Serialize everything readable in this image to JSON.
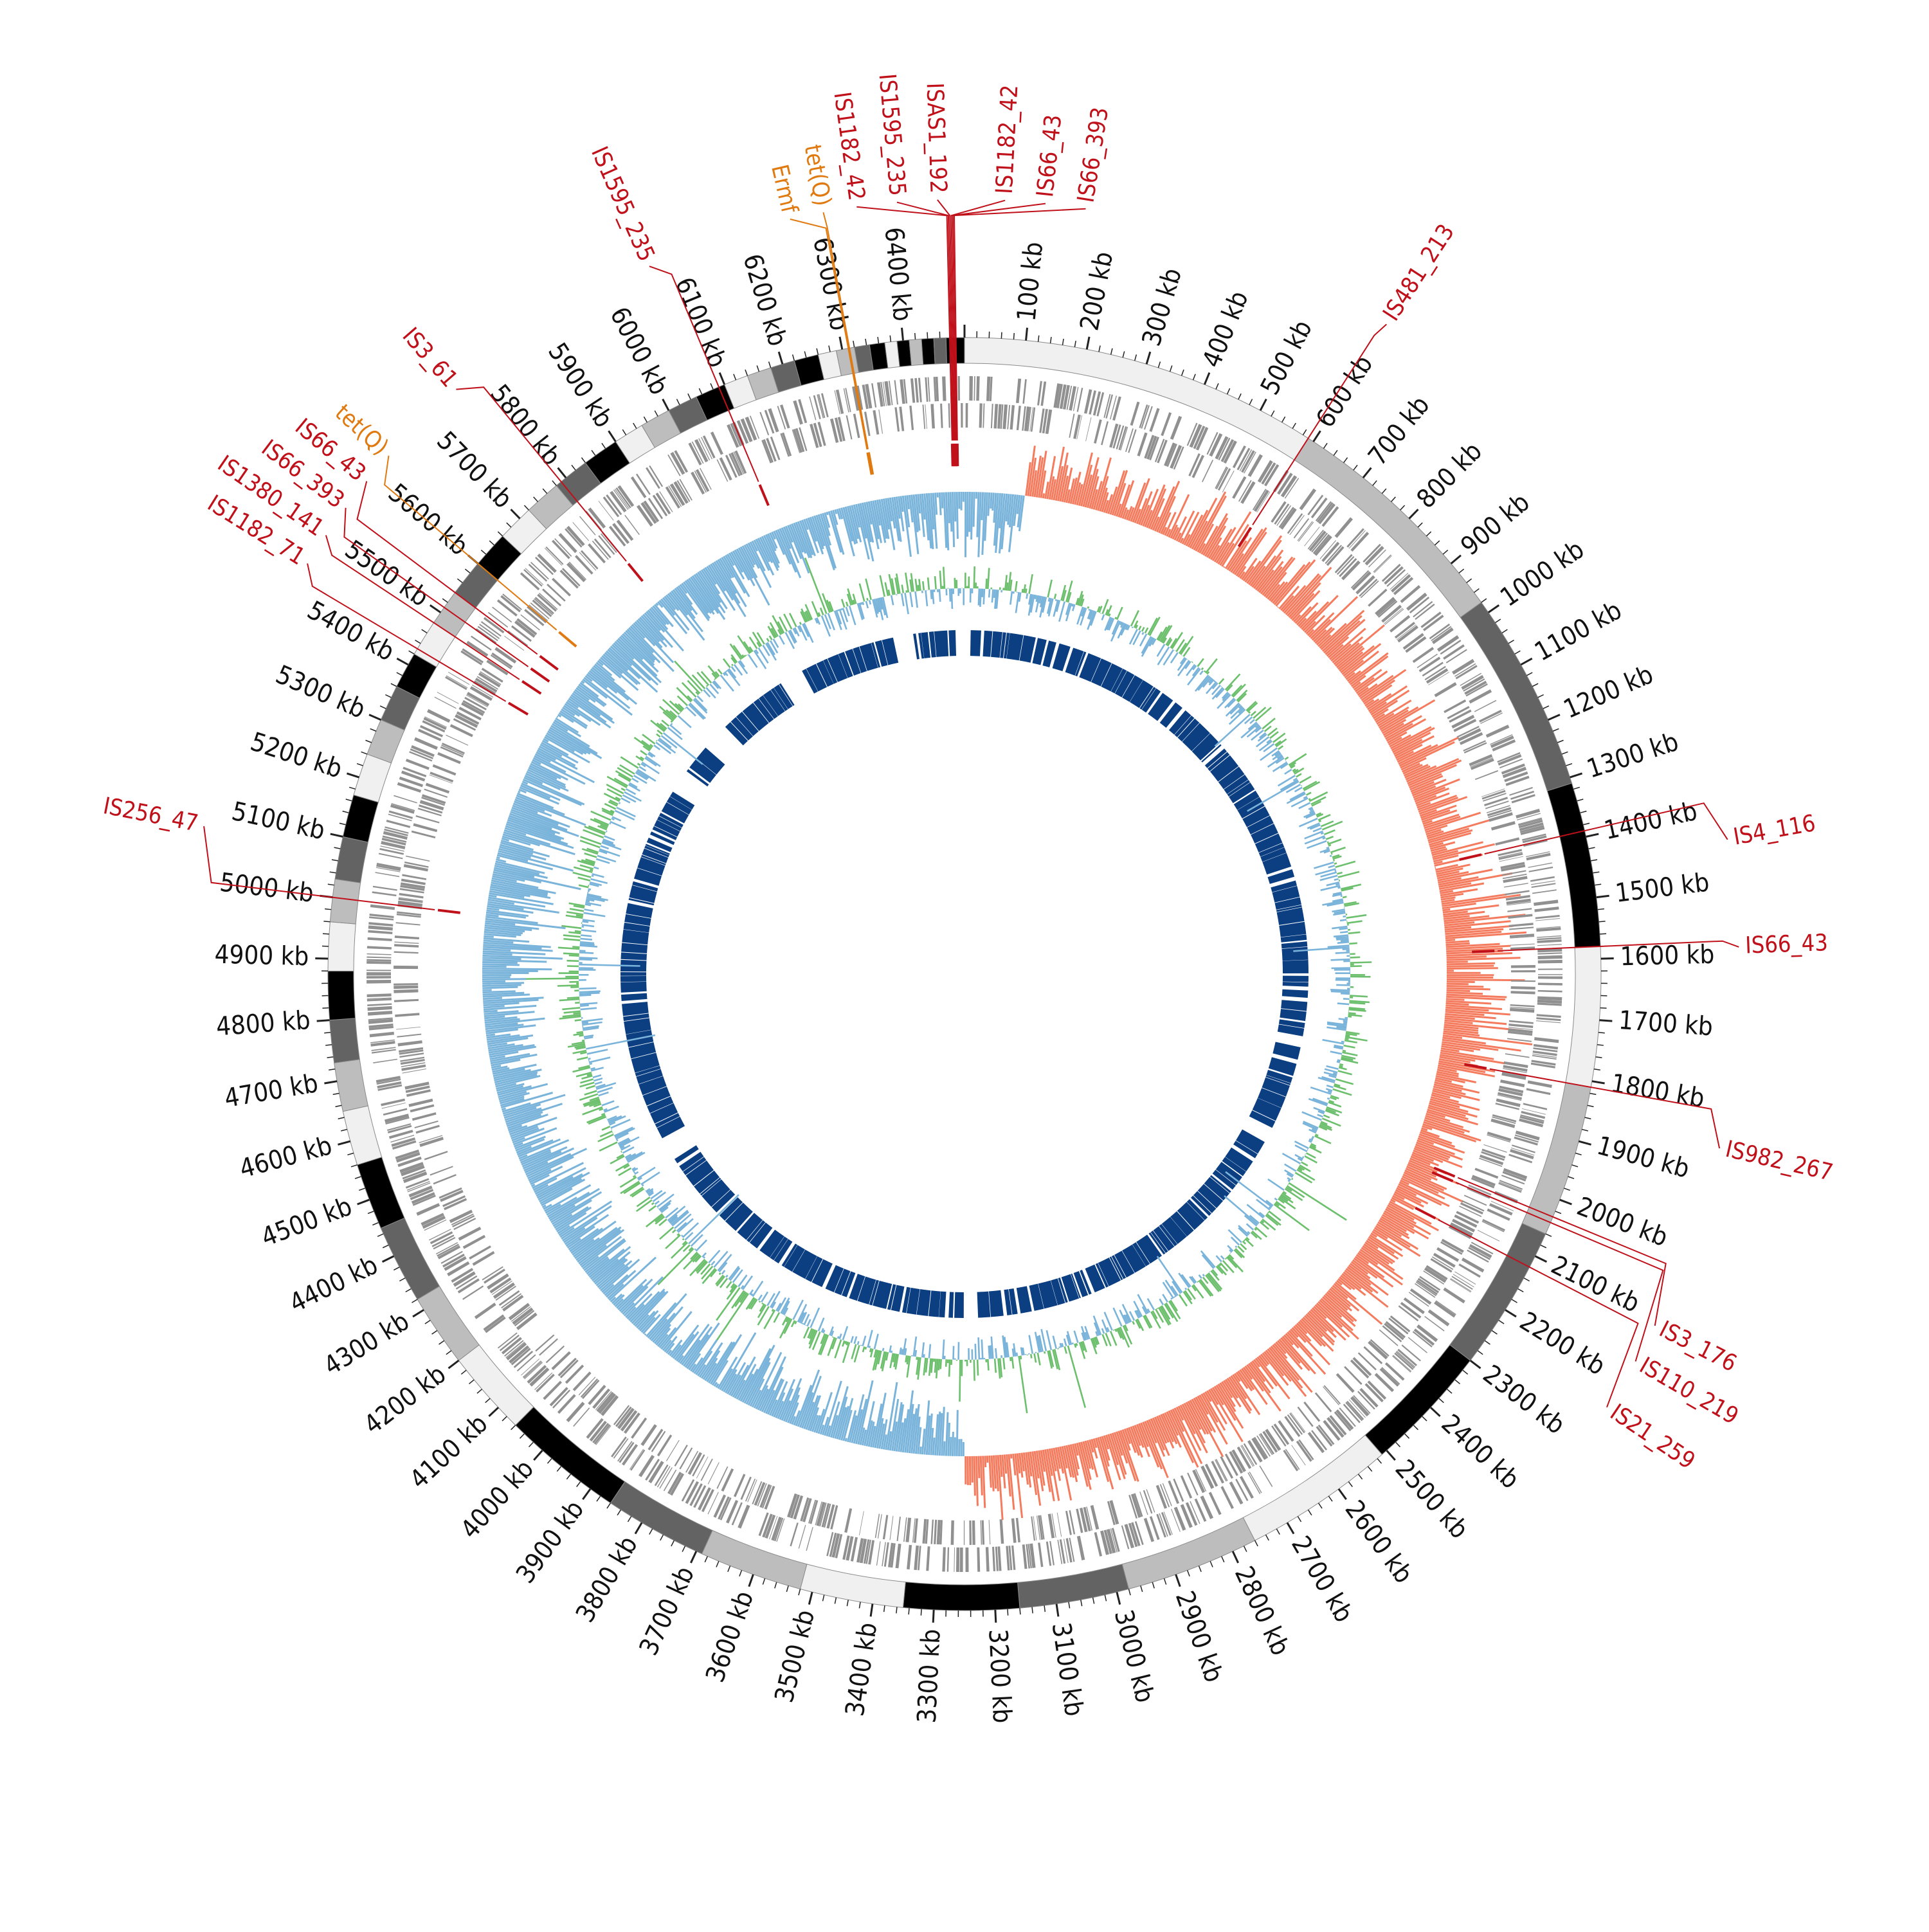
{
  "genome": {
    "length_kb": 6500,
    "tick_labels_kb": [
      100,
      200,
      300,
      400,
      500,
      600,
      700,
      800,
      900,
      1000,
      1100,
      1200,
      1300,
      1400,
      1500,
      1600,
      1700,
      1800,
      1900,
      2000,
      2100,
      2200,
      2300,
      2400,
      2500,
      2600,
      2700,
      2800,
      2900,
      3000,
      3100,
      3200,
      3300,
      3400,
      3500,
      3600,
      3700,
      3800,
      3900,
      4000,
      4100,
      4200,
      4300,
      4400,
      4500,
      4600,
      4700,
      4800,
      4900,
      5000,
      5100,
      5200,
      5300,
      5400,
      5500,
      5600,
      5700,
      5800,
      5900,
      6000,
      6100,
      6200,
      6300,
      6400
    ],
    "tick_label_suffix": " kb"
  },
  "colors": {
    "is_element": "#c0101a",
    "resistance_gene": "#e07a10",
    "gc_content": "#6cbf6c",
    "skew_negative": "#7ab4da",
    "skew_positive": "#f47b5e",
    "cds": "#909090",
    "inner_block": "#0b3f82",
    "contig_palette": [
      "#f0f0f0",
      "#bdbdbd",
      "#636363",
      "#000000"
    ]
  },
  "contigs_kb": [
    {
      "start": 0,
      "end": 590,
      "shade": 0
    },
    {
      "start": 590,
      "end": 980,
      "shade": 1
    },
    {
      "start": 980,
      "end": 1310,
      "shade": 2
    },
    {
      "start": 1310,
      "end": 1580,
      "shade": 3
    },
    {
      "start": 1580,
      "end": 1810,
      "shade": 0
    },
    {
      "start": 1810,
      "end": 2060,
      "shade": 1
    },
    {
      "start": 2060,
      "end": 2300,
      "shade": 2
    },
    {
      "start": 2300,
      "end": 2510,
      "shade": 3
    },
    {
      "start": 2510,
      "end": 2760,
      "shade": 0
    },
    {
      "start": 2760,
      "end": 2980,
      "shade": 1
    },
    {
      "start": 2980,
      "end": 3160,
      "shade": 2
    },
    {
      "start": 3160,
      "end": 3350,
      "shade": 3
    },
    {
      "start": 3350,
      "end": 3520,
      "shade": 0
    },
    {
      "start": 3520,
      "end": 3690,
      "shade": 1
    },
    {
      "start": 3690,
      "end": 3860,
      "shade": 2
    },
    {
      "start": 3860,
      "end": 4060,
      "shade": 3
    },
    {
      "start": 4060,
      "end": 4200,
      "shade": 0
    },
    {
      "start": 4200,
      "end": 4320,
      "shade": 1
    },
    {
      "start": 4320,
      "end": 4450,
      "shade": 2
    },
    {
      "start": 4450,
      "end": 4560,
      "shade": 3
    },
    {
      "start": 4560,
      "end": 4650,
      "shade": 0
    },
    {
      "start": 4650,
      "end": 4730,
      "shade": 1
    },
    {
      "start": 4730,
      "end": 4800,
      "shade": 2
    },
    {
      "start": 4800,
      "end": 4880,
      "shade": 3
    },
    {
      "start": 4880,
      "end": 4960,
      "shade": 0
    },
    {
      "start": 4960,
      "end": 5030,
      "shade": 1
    },
    {
      "start": 5030,
      "end": 5100,
      "shade": 2
    },
    {
      "start": 5100,
      "end": 5170,
      "shade": 3
    },
    {
      "start": 5170,
      "end": 5240,
      "shade": 0
    },
    {
      "start": 5240,
      "end": 5300,
      "shade": 1
    },
    {
      "start": 5300,
      "end": 5360,
      "shade": 2
    },
    {
      "start": 5360,
      "end": 5420,
      "shade": 3
    },
    {
      "start": 5420,
      "end": 5480,
      "shade": 0
    },
    {
      "start": 5480,
      "end": 5540,
      "shade": 1
    },
    {
      "start": 5540,
      "end": 5600,
      "shade": 2
    },
    {
      "start": 5600,
      "end": 5660,
      "shade": 3
    },
    {
      "start": 5660,
      "end": 5720,
      "shade": 0
    },
    {
      "start": 5720,
      "end": 5780,
      "shade": 1
    },
    {
      "start": 5780,
      "end": 5840,
      "shade": 2
    },
    {
      "start": 5840,
      "end": 5900,
      "shade": 3
    },
    {
      "start": 5900,
      "end": 5950,
      "shade": 0
    },
    {
      "start": 5950,
      "end": 6000,
      "shade": 1
    },
    {
      "start": 6000,
      "end": 6050,
      "shade": 2
    },
    {
      "start": 6050,
      "end": 6100,
      "shade": 3
    },
    {
      "start": 6100,
      "end": 6140,
      "shade": 0
    },
    {
      "start": 6140,
      "end": 6180,
      "shade": 1
    },
    {
      "start": 6180,
      "end": 6220,
      "shade": 2
    },
    {
      "start": 6220,
      "end": 6260,
      "shade": 3
    },
    {
      "start": 6260,
      "end": 6290,
      "shade": 0
    },
    {
      "start": 6290,
      "end": 6320,
      "shade": 1
    },
    {
      "start": 6320,
      "end": 6345,
      "shade": 2
    },
    {
      "start": 6345,
      "end": 6370,
      "shade": 3
    },
    {
      "start": 6370,
      "end": 6390,
      "shade": 0
    },
    {
      "start": 6390,
      "end": 6410,
      "shade": 3
    },
    {
      "start": 6410,
      "end": 6430,
      "shade": 1
    },
    {
      "start": 6430,
      "end": 6450,
      "shade": 3
    },
    {
      "start": 6450,
      "end": 6470,
      "shade": 2
    },
    {
      "start": 6470,
      "end": 6500,
      "shade": 3
    }
  ],
  "features": [
    {
      "name": "ISAS1_192",
      "kb": 6480,
      "kind": "is",
      "label_angle_deg": -2.0
    },
    {
      "name": "IS1595_235",
      "kb": 6478,
      "kind": "is",
      "label_angle_deg": -5.0
    },
    {
      "name": "IS1182_42",
      "kb": 6476,
      "kind": "is",
      "label_angle_deg": -8.0
    },
    {
      "name": "IS1182_42",
      "kb": 6482,
      "kind": "is",
      "label_angle_deg": 3.0
    },
    {
      "name": "IS66_43",
      "kb": 6484,
      "kind": "is",
      "label_angle_deg": 6.0
    },
    {
      "name": "IS66_393",
      "kb": 6486,
      "kind": "is",
      "label_angle_deg": 9.0
    },
    {
      "name": "Ermf",
      "kb": 6310,
      "kind": "res",
      "label_angle_deg": -13.0
    },
    {
      "name": "tet(Q)",
      "kb": 6312,
      "kind": "res",
      "label_angle_deg": -10.5
    },
    {
      "name": "IS1595_235",
      "kb": 6090,
      "kind": "is",
      "label_angle_deg": -24.0
    },
    {
      "name": "IS3_61",
      "kb": 5790,
      "kind": "is",
      "label_angle_deg": -41.0
    },
    {
      "name": "tet(Q)",
      "kb": 5600,
      "kind": "res",
      "label_angle_deg": -48.0
    },
    {
      "name": "IS66_43",
      "kb": 5540,
      "kind": "is",
      "label_angle_deg": -50.5
    },
    {
      "name": "IS66_393",
      "kb": 5510,
      "kind": "is",
      "label_angle_deg": -53.0
    },
    {
      "name": "IS1380_141",
      "kb": 5480,
      "kind": "is",
      "label_angle_deg": -55.5
    },
    {
      "name": "IS1182_71",
      "kb": 5430,
      "kind": "is",
      "label_angle_deg": -58.0
    },
    {
      "name": "IS256_47",
      "kb": 5000,
      "kind": "is",
      "label_angle_deg": -79.0
    },
    {
      "name": "IS481_213",
      "kb": 590,
      "kind": "is",
      "label_angle_deg": 33.0
    },
    {
      "name": "IS4_116",
      "kb": 1390,
      "kind": "is",
      "label_angle_deg": 80.0
    },
    {
      "name": "IS66_43",
      "kb": 1580,
      "kind": "is",
      "label_angle_deg": 88.0
    },
    {
      "name": "IS982_267",
      "kb": 1810,
      "kind": "is",
      "label_angle_deg": 103.0
    },
    {
      "name": "IS3_176",
      "kb": 2030,
      "kind": "is",
      "label_angle_deg": 117.0
    },
    {
      "name": "IS110_219",
      "kb": 2040,
      "kind": "is",
      "label_angle_deg": 120.0
    },
    {
      "name": "IS21_259",
      "kb": 2120,
      "kind": "is",
      "label_angle_deg": 124.0
    }
  ]
}
